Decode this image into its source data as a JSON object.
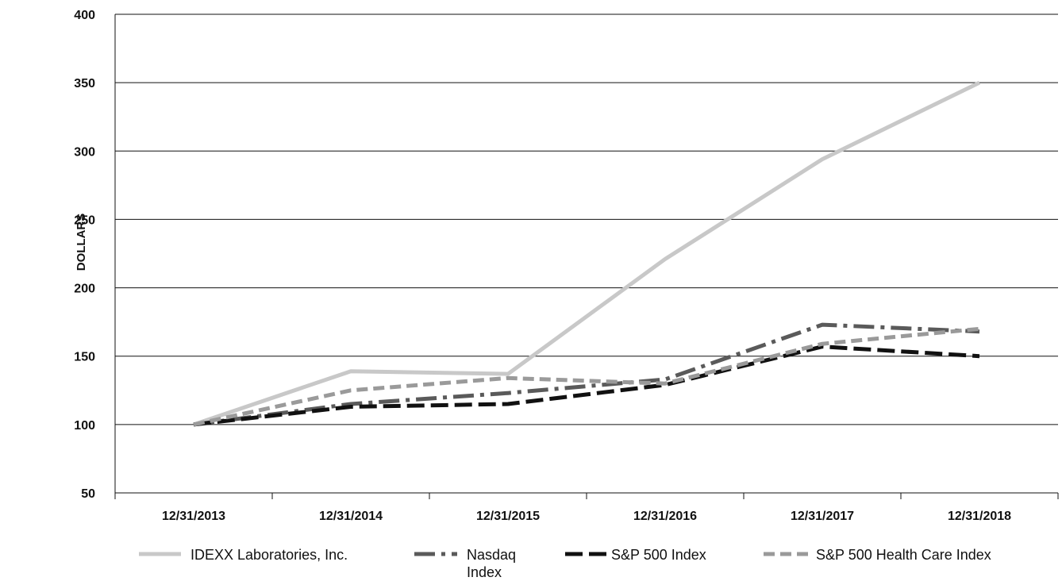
{
  "chart_data": {
    "type": "line",
    "title": "",
    "xlabel": "",
    "ylabel": "DOLLARS",
    "categories": [
      "12/31/2013",
      "12/31/2014",
      "12/31/2015",
      "12/31/2016",
      "12/31/2017",
      "12/31/2018"
    ],
    "yticks": [
      50,
      100,
      150,
      200,
      250,
      300,
      350,
      400
    ],
    "ylim": [
      50,
      400
    ],
    "grid": "horizontal",
    "legend_position": "bottom",
    "series": [
      {
        "name": "IDEXX Laboratories, Inc.",
        "values": [
          100,
          139,
          137,
          221,
          294,
          350
        ],
        "color": "#c8c8c8",
        "style": "solid"
      },
      {
        "name": "Nasdaq Index",
        "values": [
          100,
          115,
          123,
          133,
          173,
          168
        ],
        "color": "#5a5a5a",
        "style": "dash-dot"
      },
      {
        "name": "S&P 500 Index",
        "values": [
          100,
          113,
          115,
          129,
          157,
          150
        ],
        "color": "#111111",
        "style": "dashed"
      },
      {
        "name": "S&P 500 Health Care Index",
        "values": [
          100,
          125,
          134,
          130,
          159,
          170
        ],
        "color": "#9a9a9a",
        "style": "short-dash"
      }
    ]
  }
}
